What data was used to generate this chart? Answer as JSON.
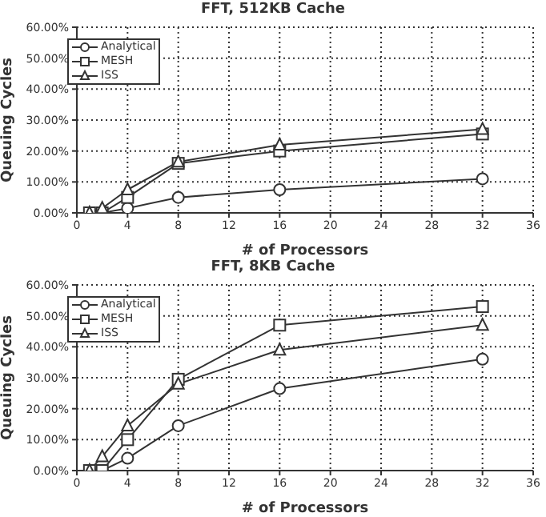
{
  "chart_data": [
    {
      "type": "line",
      "title": "FFT, 512KB Cache",
      "xlabel": "# of Processors",
      "ylabel": "Queuing Cycles",
      "x": [
        1,
        2,
        4,
        8,
        16,
        32
      ],
      "series": [
        {
          "name": "Analytical",
          "color": "#333333",
          "marker": "circle",
          "values": [
            0,
            0,
            1.5,
            5,
            7.5,
            11
          ]
        },
        {
          "name": "MESH",
          "color": "#333333",
          "marker": "square",
          "values": [
            0,
            0,
            5,
            16,
            20,
            25.5
          ]
        },
        {
          "name": "ISS",
          "color": "#333333",
          "marker": "triangle",
          "values": [
            0,
            1.5,
            7.5,
            16.5,
            22,
            27
          ]
        }
      ],
      "xlim": [
        0,
        36
      ],
      "xticks": [
        0,
        4,
        8,
        12,
        16,
        20,
        24,
        28,
        32,
        36
      ],
      "ylim": [
        0,
        60
      ],
      "yticks": [
        {
          "value": 0,
          "label": "0.00%"
        },
        {
          "value": 10,
          "label": "10.00%"
        },
        {
          "value": 20,
          "label": "20.00%"
        },
        {
          "value": 30,
          "label": "30.00%"
        },
        {
          "value": 40,
          "label": "40.00%"
        },
        {
          "value": 50,
          "label": "50.00%"
        },
        {
          "value": 60,
          "label": "60.00%"
        }
      ],
      "grid": true,
      "legend": "top left",
      "line_style": "solid"
    },
    {
      "type": "line",
      "title": "FFT, 8KB Cache",
      "xlabel": "# of Processors",
      "ylabel": "Queuing Cycles",
      "x": [
        1,
        2,
        4,
        8,
        16,
        32
      ],
      "series": [
        {
          "name": "Analytical",
          "color": "#333333",
          "marker": "circle",
          "values": [
            0,
            0,
            4,
            14.5,
            26.5,
            36
          ]
        },
        {
          "name": "MESH",
          "color": "#333333",
          "marker": "square",
          "values": [
            0,
            0,
            10,
            29.5,
            47,
            53
          ]
        },
        {
          "name": "ISS",
          "color": "#333333",
          "marker": "triangle",
          "values": [
            0,
            4.5,
            14.5,
            28,
            39,
            47
          ]
        }
      ],
      "xlim": [
        0,
        36
      ],
      "xticks": [
        0,
        4,
        8,
        12,
        16,
        20,
        24,
        28,
        32,
        36
      ],
      "ylim": [
        0,
        60
      ],
      "yticks": [
        {
          "value": 0,
          "label": "0.00%"
        },
        {
          "value": 10,
          "label": "10.00%"
        },
        {
          "value": 20,
          "label": "20.00%"
        },
        {
          "value": 30,
          "label": "30.00%"
        },
        {
          "value": 40,
          "label": "40.00%"
        },
        {
          "value": 50,
          "label": "50.00%"
        },
        {
          "value": 60,
          "label": "60.00%"
        }
      ],
      "grid": true,
      "legend": "top left",
      "line_style": "solid"
    }
  ]
}
